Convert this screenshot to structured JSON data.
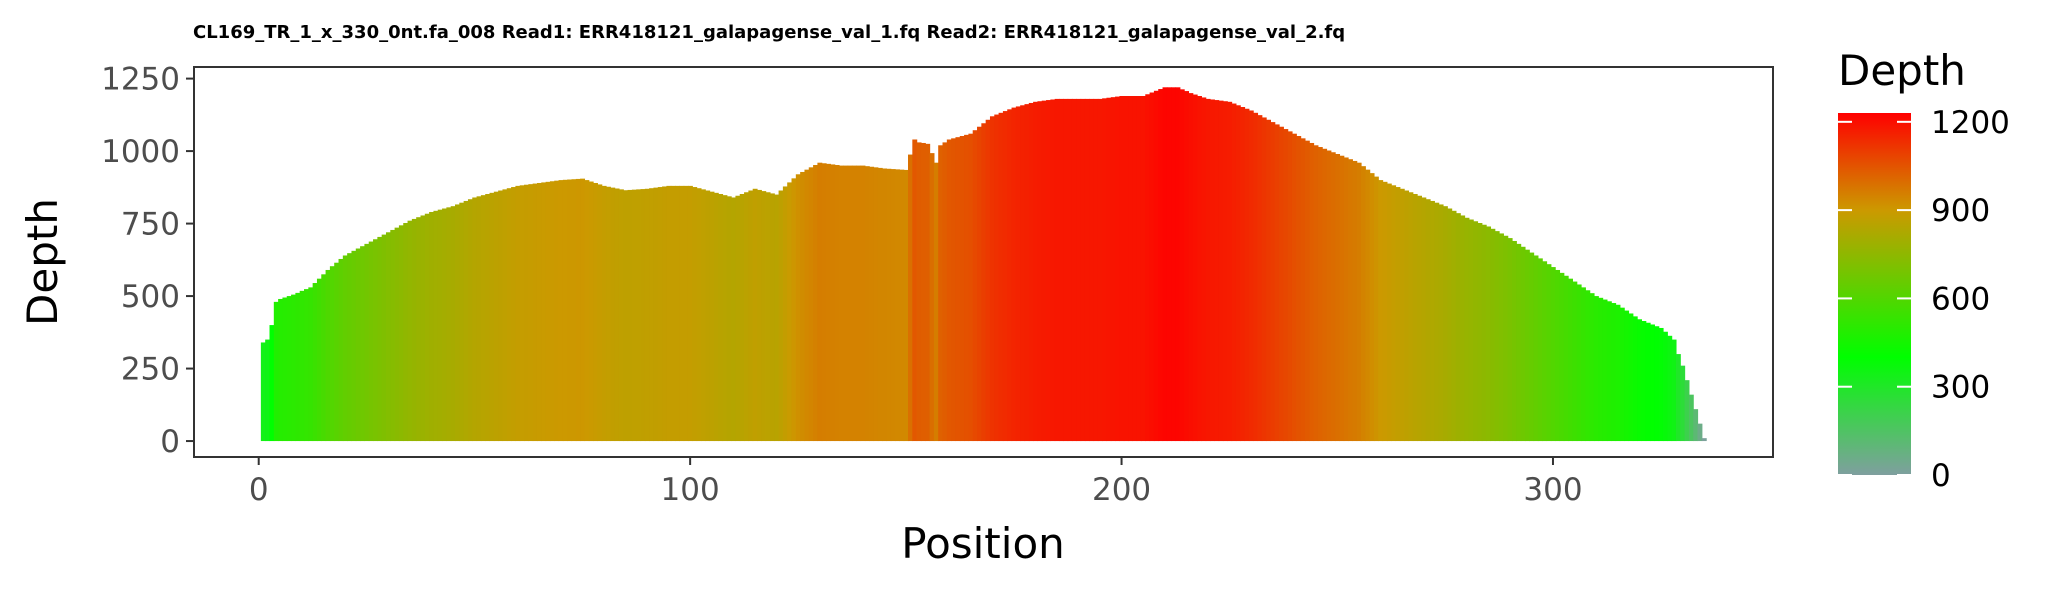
{
  "chart_data": {
    "type": "bar",
    "title": "CL169_TR_1_x_330_0nt.fa_008 Read1: ERR418121_galapagense_val_1.fq Read2: ERR418121_galapagense_val_2.fq",
    "xlabel": "Position",
    "ylabel": "Depth",
    "xlim": [
      -15,
      351
    ],
    "ylim": [
      -55,
      1290
    ],
    "x_ticks": [
      0,
      100,
      200,
      300
    ],
    "y_ticks": [
      0,
      250,
      500,
      750,
      1000,
      1250
    ],
    "grid": false,
    "legend": {
      "title": "Depth",
      "position": "right",
      "ticks": [
        0,
        300,
        600,
        900,
        1200
      ],
      "range": [
        0,
        1230
      ]
    },
    "color_scale": [
      {
        "value": 0,
        "color": "#7f9f9f"
      },
      {
        "value": 400,
        "color": "#00ff00"
      },
      {
        "value": 900,
        "color": "#cc9900"
      },
      {
        "value": 1230,
        "color": "#ff0000"
      }
    ],
    "depth_profile": {
      "x": [
        1,
        2,
        3,
        4,
        5,
        8,
        12,
        16,
        20,
        25,
        30,
        35,
        40,
        45,
        50,
        55,
        60,
        65,
        70,
        75,
        80,
        85,
        90,
        95,
        100,
        105,
        110,
        115,
        120,
        125,
        130,
        135,
        140,
        145,
        150,
        152,
        153,
        155,
        157,
        158,
        160,
        165,
        170,
        175,
        180,
        185,
        190,
        195,
        200,
        205,
        210,
        213,
        216,
        220,
        225,
        230,
        235,
        240,
        245,
        250,
        255,
        260,
        265,
        270,
        275,
        280,
        285,
        290,
        295,
        300,
        305,
        310,
        315,
        320,
        325,
        328,
        329,
        330,
        335
      ],
      "y": [
        340,
        350,
        400,
        480,
        490,
        505,
        530,
        590,
        640,
        680,
        720,
        760,
        790,
        810,
        840,
        860,
        880,
        890,
        900,
        905,
        880,
        865,
        870,
        880,
        880,
        860,
        840,
        870,
        850,
        920,
        960,
        950,
        950,
        940,
        935,
        1040,
        1030,
        1025,
        960,
        1020,
        1040,
        1060,
        1120,
        1150,
        1170,
        1180,
        1180,
        1180,
        1190,
        1190,
        1220,
        1220,
        1200,
        1180,
        1170,
        1140,
        1100,
        1060,
        1020,
        990,
        960,
        900,
        870,
        840,
        810,
        770,
        740,
        700,
        650,
        600,
        550,
        500,
        470,
        420,
        390,
        350,
        300,
        260,
        10
      ]
    }
  }
}
